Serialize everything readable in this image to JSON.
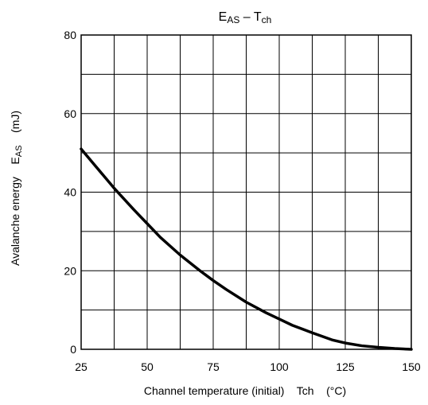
{
  "chart_data": {
    "type": "line",
    "title": {
      "main": "E",
      "main_sub": "AS",
      "dash": " – ",
      "var": "T",
      "var_sub": "ch"
    },
    "xlabel": "Channel temperature (initial)    Tch    (°C)",
    "ylabel": {
      "text": "Avalanche energy    E",
      "sub": "AS",
      "unit": "    (mJ)"
    },
    "xlim": [
      25,
      150
    ],
    "ylim": [
      0,
      80
    ],
    "xticks": [
      25,
      50,
      75,
      100,
      125,
      150
    ],
    "yticks": [
      0,
      20,
      40,
      60,
      80
    ],
    "x_grid_step": 12.5,
    "y_grid_step": 10,
    "grid": true,
    "series": [
      {
        "color": "#000000",
        "x": [
          25,
          30,
          37.5,
          45,
          50,
          55,
          62.5,
          70,
          75,
          80,
          87.5,
          95,
          100,
          105,
          112.5,
          120,
          125,
          131.25,
          137.5,
          143.75,
          150
        ],
        "y": [
          51,
          47,
          41,
          35.5,
          32,
          28.5,
          24,
          20,
          17.5,
          15.2,
          12,
          9.3,
          7.7,
          6.1,
          4.2,
          2.4,
          1.6,
          0.9,
          0.5,
          0.2,
          0
        ]
      }
    ]
  }
}
